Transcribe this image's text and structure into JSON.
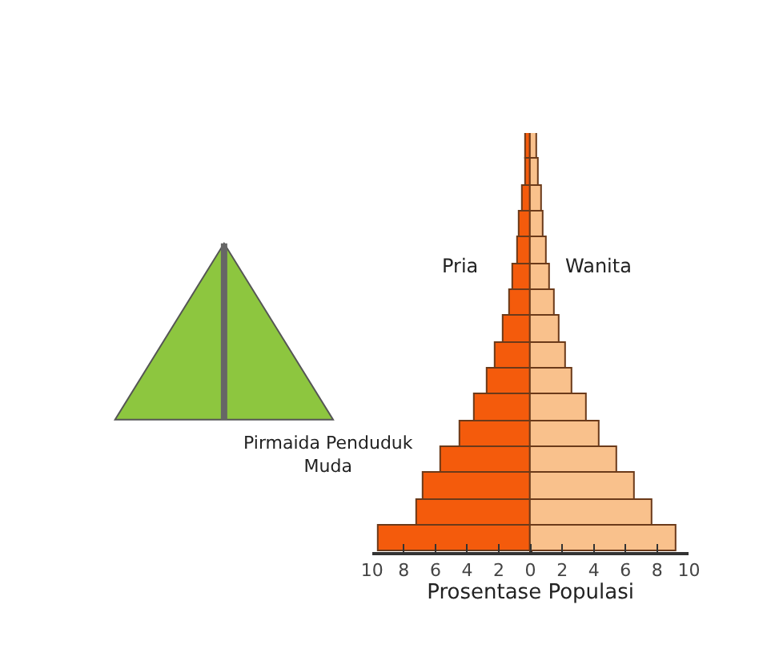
{
  "chart_data": {
    "type": "bar",
    "orientation": "horizontal",
    "stacked": true,
    "categories": [
      null,
      null,
      null,
      null,
      null,
      null,
      null,
      null,
      null,
      null,
      null,
      null,
      null,
      null,
      null,
      null
    ],
    "series": [
      {
        "name": "Pria",
        "color": "#f45b0c",
        "values": [
          -0.3,
          -0.3,
          -0.5,
          -0.7,
          -0.8,
          -1.1,
          -1.3,
          -1.7,
          -2.2,
          -2.7,
          -3.5,
          -4.4,
          -5.7,
          -6.8,
          -7.2,
          -9.6
        ]
      },
      {
        "name": "Wanita",
        "color": "#f9c18c",
        "values": [
          0.4,
          0.5,
          0.7,
          0.8,
          1.0,
          1.2,
          1.5,
          1.8,
          2.2,
          2.6,
          3.5,
          4.4,
          5.5,
          6.6,
          7.7,
          9.2
        ]
      }
    ],
    "xlabel": "Prosentase Populasi",
    "xlim": [
      -10,
      10
    ],
    "xticks": [
      {
        "value": -10,
        "label": "10"
      },
      {
        "value": -8,
        "label": "8"
      },
      {
        "value": -6,
        "label": "6"
      },
      {
        "value": -4,
        "label": "4"
      },
      {
        "value": -2,
        "label": "2"
      },
      0,
      2,
      4,
      6,
      8,
      10
    ],
    "tick_labels": "x",
    "legend": false,
    "annotations": [
      "Pirmaida Penduduk Muda"
    ]
  }
}
